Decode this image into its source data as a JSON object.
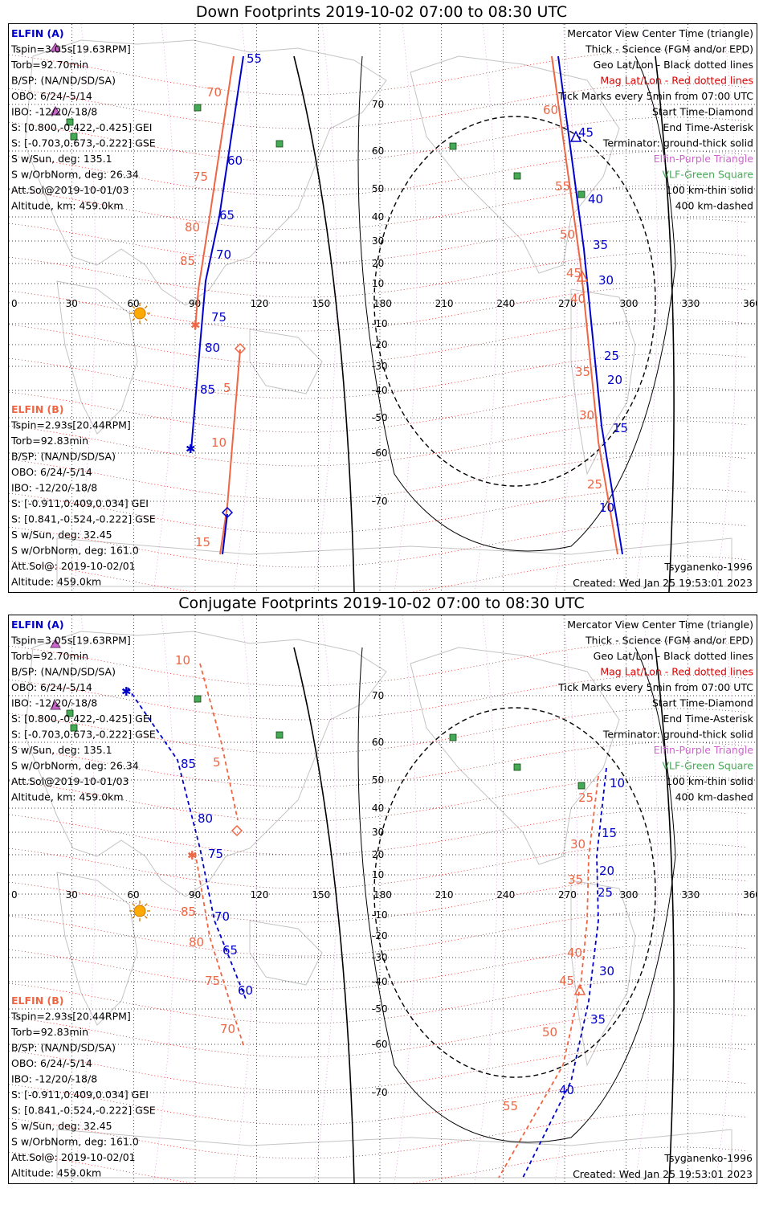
{
  "panels": [
    {
      "title": "Down Footprints 2019-10-02 07:00 to 08:30 UTC",
      "left_block_a": [
        "ELFIN (A)",
        "Tspin=3.05s[19.63RPM]",
        "Torb=92.70min",
        "B/SP: (NA/ND/SD/SA)",
        "OBO: 6/24/-5/14",
        "IBO: -12/20/-18/8",
        "S: [0.800,-0.422,-0.425] GEI",
        "S: [-0.703,0.673,-0.222] GSE",
        "S w/Sun, deg: 135.1",
        "S w/OrbNorm, deg: 26.34",
        "Att.Sol@2019-10-01/03",
        "Altitude, km: 459.0km"
      ],
      "left_block_b": [
        "ELFIN (B)",
        "Tspin=2.93s[20.44RPM]",
        "Torb=92.83min",
        "B/SP: (NA/ND/SD/SA)",
        "OBO: 6/24/-5/14",
        "IBO: -12/20/-18/8",
        "S: [-0.911,0.409,0.034] GEI",
        "S: [0.841,-0.524,-0.222] GSE",
        "S w/Sun, deg: 32.45",
        "S w/OrbNorm, deg: 161.0",
        "Att.Sol@: 2019-10-02/01",
        "Altitude: 459.0km"
      ],
      "right_block": [
        "Mercator View Center Time (triangle)",
        "Thick - Science (FGM and/or EPD)",
        "Geo Lat/Lon - Black dotted lines",
        "Mag Lat/Lon - Red dotted lines",
        "Tick Marks every 5min from 07:00 UTC",
        "Start Time-Diamond",
        "End Time-Asterisk",
        "Terminator: ground-thick solid",
        "Elfin-Purple Triangle",
        "VLF-Green Square",
        "100 km-thin solid",
        "400 km-dashed"
      ],
      "footer_left": "Tsyganenko-1996",
      "footer_right": "Created: Wed Jan 25 19:53:01 2023",
      "blue_track_1_labels": [
        "55",
        "60",
        "65",
        "70",
        "75",
        "80",
        "85"
      ],
      "red_track_1_labels": [
        "70",
        "75",
        "80",
        "85",
        "5",
        "10",
        "15"
      ],
      "blue_track_2_labels": [
        "45",
        "40",
        "35",
        "30",
        "25",
        "20",
        "15",
        "10"
      ],
      "red_track_2_labels": [
        "60",
        "55",
        "50",
        "45",
        "40",
        "35",
        "30",
        "25"
      ]
    },
    {
      "title": "Conjugate Footprints 2019-10-02 07:00 to 08:30 UTC",
      "left_block_a": [
        "ELFIN (A)",
        "Tspin=3.05s[19.63RPM]",
        "Torb=92.70min",
        "B/SP: (NA/ND/SD/SA)",
        "OBO: 6/24/-5/14",
        "IBO: -12/20/-18/8",
        "S: [0.800,-0.422,-0.425] GEI",
        "S: [-0.703,0.673,-0.222] GSE",
        "S w/Sun, deg: 135.1",
        "S w/OrbNorm, deg: 26.34",
        "Att.Sol@2019-10-01/03",
        "Altitude, km: 459.0km"
      ],
      "left_block_b": [
        "ELFIN (B)",
        "Tspin=2.93s[20.44RPM]",
        "Torb=92.83min",
        "B/SP: (NA/ND/SD/SA)",
        "OBO: 6/24/-5/14",
        "IBO: -12/20/-18/8",
        "S: [-0.911,0.409,0.034] GEI",
        "S: [0.841,-0.524,-0.222] GSE",
        "S w/Sun, deg: 32.45",
        "S w/OrbNorm, deg: 161.0",
        "Att.Sol@: 2019-10-02/01",
        "Altitude: 459.0km"
      ],
      "right_block": [
        "Mercator View Center Time (triangle)",
        "Thick - Science (FGM and/or EPD)",
        "Geo Lat/Lon - Black dotted lines",
        "Mag Lat/Lon - Red dotted lines",
        "Tick Marks every 5min from 07:00 UTC",
        "Start Time-Diamond",
        "End Time-Asterisk",
        "Terminator: ground-thick solid",
        "Elfin-Purple Triangle",
        "VLF-Green Square",
        "100 km-thin solid",
        "400 km-dashed"
      ],
      "footer_left": "Tsyganenko-1996",
      "footer_right": "Created: Wed Jan 25 19:53:01 2023",
      "blue_track_1_labels": [
        "85",
        "80",
        "75",
        "70",
        "65",
        "60"
      ],
      "red_track_1_labels": [
        "10",
        "5",
        "85",
        "80",
        "75",
        "70"
      ],
      "blue_track_2_labels": [
        "10",
        "15",
        "20",
        "25",
        "30",
        "35",
        "40"
      ],
      "red_track_2_labels": [
        "25",
        "30",
        "35",
        "40",
        "45",
        "50",
        "55"
      ]
    }
  ],
  "axes": {
    "lon_ticks": [
      "0",
      "30",
      "60",
      "90",
      "120",
      "150",
      "180",
      "210",
      "240",
      "270",
      "300",
      "330",
      "360"
    ],
    "lat_ticks": [
      "70",
      "60",
      "50",
      "40",
      "30",
      "20",
      "10",
      "-10",
      "-20",
      "-30",
      "-40",
      "-50",
      "-60",
      "-70"
    ]
  },
  "colors": {
    "elfin_a": "#0000cc",
    "elfin_b": "#ee6644",
    "mag_grid": "#dd0000",
    "elfin_marker": "#cc66cc",
    "vlf_marker": "#44aa55",
    "sun": "#ffaa00"
  }
}
